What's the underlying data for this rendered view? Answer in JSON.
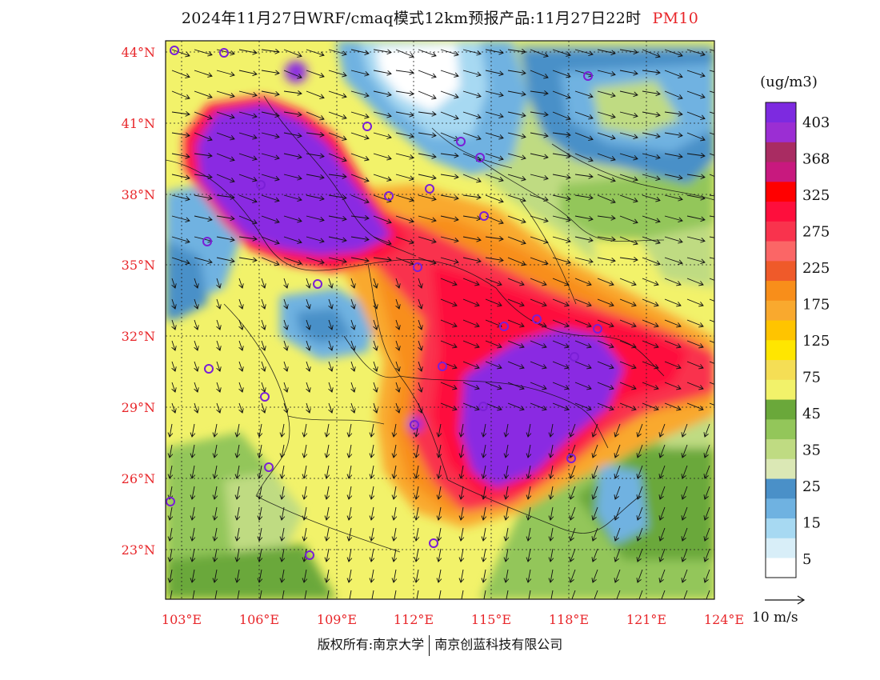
{
  "title": {
    "main": "2024年11月27日WRF/cmaq模式12km预报产品:11月27日22时",
    "variable": "PM10"
  },
  "latitude_labels": [
    "44°N",
    "41°N",
    "38°N",
    "35°N",
    "32°N",
    "29°N",
    "26°N",
    "23°N"
  ],
  "longitude_labels": [
    "103°E",
    "106°E",
    "109°E",
    "112°E",
    "115°E",
    "118°E",
    "121°E",
    "124°E"
  ],
  "legend": {
    "unit": "(ug/m3)",
    "labels": [
      "403",
      "368",
      "325",
      "275",
      "225",
      "175",
      "125",
      "75",
      "45",
      "35",
      "25",
      "15",
      "5"
    ],
    "colors": [
      "#ffffff",
      "#d8eef8",
      "#a7d9f2",
      "#6fb2e1",
      "#4a90c8",
      "#dbe8b5",
      "#bfdb82",
      "#93c65a",
      "#6aa83a",
      "#f2f26a",
      "#f5de55",
      "#ffe600",
      "#ffc400",
      "#f9a92e",
      "#f88e1a",
      "#ef5a2a",
      "#fb6666",
      "#f9334d",
      "#fe0e3c",
      "#ff0000",
      "#c8197e",
      "#a92c62",
      "#9b2ed3",
      "#7d2ae0"
    ]
  },
  "wind_reference": {
    "label": "10 m/s"
  },
  "footer": {
    "copyright": "版权所有:南京大学",
    "company": "南京创蓝科技有限公司"
  },
  "colors": {
    "axis_label": "#e8262a",
    "purple_high": "#8a2be2"
  }
}
